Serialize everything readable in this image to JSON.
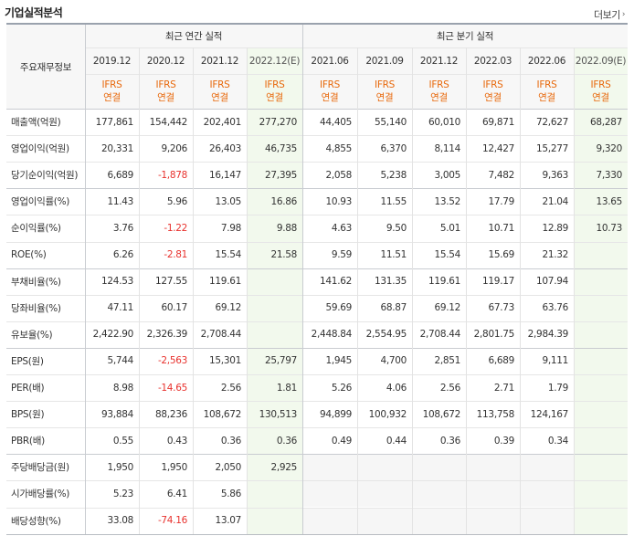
{
  "header": {
    "title": "기업실적분석",
    "more_label": "더보기"
  },
  "table": {
    "corner_label": "주요재무정보",
    "groups": {
      "annual": "최근 연간 실적",
      "quarterly": "최근 분기 실적"
    },
    "periods": [
      "2019.12",
      "2020.12",
      "2021.12",
      "2022.12(E)",
      "2021.06",
      "2021.09",
      "2021.12",
      "2022.03",
      "2022.06",
      "2022.09(E)"
    ],
    "basis": [
      "IFRS\n연결",
      "IFRS\n연결",
      "IFRS\n연결",
      "IFRS\n연결",
      "IFRS\n연결",
      "IFRS\n연결",
      "IFRS\n연결",
      "IFRS\n연결",
      "IFRS\n연결",
      "IFRS\n연결"
    ],
    "rows": [
      {
        "label": "매출액(억원)",
        "values": [
          "177,861",
          "154,442",
          "202,401",
          "277,270",
          "44,405",
          "55,140",
          "60,010",
          "69,871",
          "72,627",
          "68,287"
        ]
      },
      {
        "label": "영업이익(억원)",
        "values": [
          "20,331",
          "9,206",
          "26,403",
          "46,735",
          "4,855",
          "6,370",
          "8,114",
          "12,427",
          "15,277",
          "9,320"
        ]
      },
      {
        "label": "당기순이익(억원)",
        "values": [
          "6,689",
          "-1,878",
          "16,147",
          "27,395",
          "2,058",
          "5,238",
          "3,005",
          "7,482",
          "9,363",
          "7,330"
        ]
      },
      {
        "label": "영업이익률(%)",
        "values": [
          "11.43",
          "5.96",
          "13.05",
          "16.86",
          "10.93",
          "11.55",
          "13.52",
          "17.79",
          "21.04",
          "13.65"
        ]
      },
      {
        "label": "순이익률(%)",
        "values": [
          "3.76",
          "-1.22",
          "7.98",
          "9.88",
          "4.63",
          "9.50",
          "5.01",
          "10.71",
          "12.89",
          "10.73"
        ]
      },
      {
        "label": "ROE(%)",
        "values": [
          "6.26",
          "-2.81",
          "15.54",
          "21.58",
          "9.59",
          "11.51",
          "15.54",
          "15.69",
          "21.32",
          ""
        ]
      },
      {
        "label": "부채비율(%)",
        "values": [
          "124.53",
          "127.55",
          "119.61",
          "",
          "141.62",
          "131.35",
          "119.61",
          "119.17",
          "107.94",
          ""
        ]
      },
      {
        "label": "당좌비율(%)",
        "values": [
          "47.11",
          "60.17",
          "69.12",
          "",
          "59.69",
          "68.87",
          "69.12",
          "67.73",
          "63.76",
          ""
        ]
      },
      {
        "label": "유보율(%)",
        "values": [
          "2,422.90",
          "2,326.39",
          "2,708.44",
          "",
          "2,448.84",
          "2,554.95",
          "2,708.44",
          "2,801.75",
          "2,984.39",
          ""
        ]
      },
      {
        "label": "EPS(원)",
        "values": [
          "5,744",
          "-2,563",
          "15,301",
          "25,797",
          "1,945",
          "4,700",
          "2,851",
          "6,689",
          "9,111",
          ""
        ]
      },
      {
        "label": "PER(배)",
        "values": [
          "8.98",
          "-14.65",
          "2.56",
          "1.81",
          "5.26",
          "4.06",
          "2.56",
          "2.71",
          "1.79",
          ""
        ]
      },
      {
        "label": "BPS(원)",
        "values": [
          "93,884",
          "88,236",
          "108,672",
          "130,513",
          "94,899",
          "100,932",
          "108,672",
          "113,758",
          "124,167",
          ""
        ]
      },
      {
        "label": "PBR(배)",
        "values": [
          "0.55",
          "0.43",
          "0.36",
          "0.36",
          "0.49",
          "0.44",
          "0.36",
          "0.39",
          "0.34",
          ""
        ]
      },
      {
        "label": "주당배당금(원)",
        "values": [
          "1,950",
          "1,950",
          "2,050",
          "2,925",
          "",
          "",
          "",
          "",
          "",
          ""
        ]
      },
      {
        "label": "시가배당률(%)",
        "values": [
          "5.23",
          "6.41",
          "5.86",
          "",
          "",
          "",
          "",
          "",
          "",
          ""
        ]
      },
      {
        "label": "배당성향(%)",
        "values": [
          "33.08",
          "-74.16",
          "13.07",
          "",
          "",
          "",
          "",
          "",
          "",
          ""
        ]
      }
    ]
  },
  "colors": {
    "negative": "#e8312d",
    "ifrs": "#e8690c",
    "estimate_bg": "#f2f9ed"
  }
}
